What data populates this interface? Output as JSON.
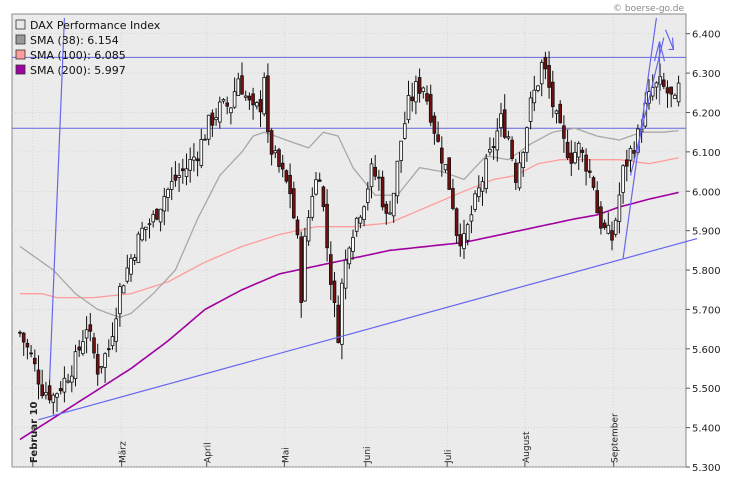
{
  "credit": "© boerse-go.de",
  "chart_data": {
    "type": "candlestick",
    "y_axis": {
      "position": "right",
      "range": [
        5.3,
        6.45
      ],
      "ticks": [
        "6.400",
        "6.300",
        "6.200",
        "6.100",
        "6.000",
        "5.900",
        "5.800",
        "5.700",
        "5.600",
        "5.500",
        "5.400",
        "5.300"
      ]
    },
    "x_axis": {
      "months": [
        "Februar 10",
        "März",
        "April",
        "Mai",
        "Juni",
        "Juli",
        "August",
        "September"
      ]
    },
    "legend": [
      {
        "name": "DAX Performance Index",
        "color": "#e8e8e8"
      },
      {
        "name": "SMA (38): 6.154",
        "color": "#999999"
      },
      {
        "name": "SMA (100): 6.085",
        "color": "#ff9c9c"
      },
      {
        "name": "SMA (200): 5.997",
        "color": "#a000a0"
      }
    ],
    "series": {
      "close_anchors": [
        [
          0,
          5.64
        ],
        [
          3,
          5.58
        ],
        [
          6,
          5.5
        ],
        [
          9,
          5.48
        ],
        [
          12,
          5.52
        ],
        [
          15,
          5.57
        ],
        [
          18,
          5.66
        ],
        [
          21,
          5.55
        ],
        [
          24,
          5.6
        ],
        [
          27,
          5.75
        ],
        [
          30,
          5.83
        ],
        [
          33,
          5.9
        ],
        [
          36,
          5.93
        ],
        [
          39,
          5.99
        ],
        [
          42,
          6.03
        ],
        [
          45,
          6.06
        ],
        [
          48,
          6.1
        ],
        [
          51,
          6.17
        ],
        [
          54,
          6.21
        ],
        [
          57,
          6.22
        ],
        [
          59,
          6.29
        ],
        [
          61,
          6.24
        ],
        [
          63,
          6.2
        ],
        [
          65,
          6.22
        ],
        [
          66,
          6.3
        ],
        [
          67,
          6.13
        ],
        [
          69,
          6.08
        ],
        [
          71,
          6.04
        ],
        [
          73,
          6.0
        ],
        [
          75,
          5.87
        ],
        [
          76,
          5.74
        ],
        [
          77,
          5.87
        ],
        [
          79,
          6.0
        ],
        [
          81,
          6.05
        ],
        [
          83,
          5.86
        ],
        [
          85,
          5.7
        ],
        [
          86,
          5.64
        ],
        [
          87,
          5.76
        ],
        [
          89,
          5.88
        ],
        [
          91,
          5.93
        ],
        [
          93,
          5.98
        ],
        [
          95,
          6.05
        ],
        [
          97,
          6.03
        ],
        [
          99,
          5.93
        ],
        [
          101,
          6.0
        ],
        [
          103,
          6.13
        ],
        [
          105,
          6.22
        ],
        [
          107,
          6.26
        ],
        [
          109,
          6.27
        ],
        [
          111,
          6.2
        ],
        [
          113,
          6.12
        ],
        [
          115,
          6.06
        ],
        [
          117,
          5.97
        ],
        [
          118,
          5.9
        ],
        [
          120,
          5.87
        ],
        [
          122,
          5.94
        ],
        [
          124,
          6.0
        ],
        [
          126,
          6.06
        ],
        [
          128,
          6.12
        ],
        [
          130,
          6.18
        ],
        [
          132,
          6.14
        ],
        [
          134,
          6.04
        ],
        [
          136,
          6.12
        ],
        [
          138,
          6.22
        ],
        [
          140,
          6.28
        ],
        [
          141,
          6.32
        ],
        [
          142,
          6.3
        ],
        [
          144,
          6.22
        ],
        [
          145,
          6.18
        ],
        [
          147,
          6.12
        ],
        [
          149,
          6.09
        ],
        [
          151,
          6.11
        ],
        [
          153,
          6.07
        ],
        [
          155,
          6.02
        ],
        [
          156,
          5.95
        ],
        [
          157,
          5.92
        ],
        [
          158,
          5.9
        ],
        [
          160,
          5.88
        ],
        [
          161,
          5.93
        ],
        [
          163,
          6.05
        ],
        [
          165,
          6.1
        ],
        [
          167,
          6.14
        ],
        [
          169,
          6.21
        ],
        [
          171,
          6.26
        ],
        [
          173,
          6.27
        ],
        [
          175,
          6.25
        ],
        [
          177,
          6.22
        ],
        [
          178,
          6.26
        ]
      ],
      "sma38_anchors": [
        [
          0,
          5.86
        ],
        [
          3,
          5.84
        ],
        [
          9,
          5.8
        ],
        [
          15,
          5.74
        ],
        [
          21,
          5.7
        ],
        [
          27,
          5.68
        ],
        [
          30,
          5.69
        ],
        [
          36,
          5.74
        ],
        [
          42,
          5.8
        ],
        [
          48,
          5.93
        ],
        [
          54,
          6.04
        ],
        [
          60,
          6.1
        ],
        [
          63,
          6.14
        ],
        [
          66,
          6.15
        ],
        [
          72,
          6.13
        ],
        [
          78,
          6.11
        ],
        [
          82,
          6.15
        ],
        [
          86,
          6.14
        ],
        [
          90,
          6.06
        ],
        [
          96,
          5.99
        ],
        [
          102,
          5.99
        ],
        [
          108,
          6.06
        ],
        [
          114,
          6.05
        ],
        [
          120,
          6.03
        ],
        [
          126,
          6.09
        ],
        [
          132,
          6.08
        ],
        [
          138,
          6.12
        ],
        [
          144,
          6.15
        ],
        [
          150,
          6.16
        ],
        [
          156,
          6.14
        ],
        [
          162,
          6.13
        ],
        [
          168,
          6.15
        ],
        [
          174,
          6.15
        ],
        [
          178,
          6.154
        ]
      ],
      "sma100_anchors": [
        [
          0,
          5.74
        ],
        [
          6,
          5.74
        ],
        [
          10,
          5.73
        ],
        [
          20,
          5.73
        ],
        [
          30,
          5.74
        ],
        [
          40,
          5.77
        ],
        [
          50,
          5.82
        ],
        [
          60,
          5.86
        ],
        [
          70,
          5.89
        ],
        [
          80,
          5.91
        ],
        [
          90,
          5.91
        ],
        [
          100,
          5.92
        ],
        [
          110,
          5.96
        ],
        [
          120,
          6.0
        ],
        [
          128,
          6.03
        ],
        [
          134,
          6.04
        ],
        [
          140,
          6.07
        ],
        [
          146,
          6.08
        ],
        [
          150,
          6.08
        ],
        [
          156,
          6.08
        ],
        [
          162,
          6.08
        ],
        [
          170,
          6.07
        ],
        [
          178,
          6.085
        ]
      ],
      "sma200_anchors": [
        [
          0,
          5.37
        ],
        [
          10,
          5.43
        ],
        [
          20,
          5.49
        ],
        [
          30,
          5.55
        ],
        [
          40,
          5.62
        ],
        [
          50,
          5.7
        ],
        [
          60,
          5.75
        ],
        [
          70,
          5.79
        ],
        [
          80,
          5.81
        ],
        [
          90,
          5.83
        ],
        [
          100,
          5.85
        ],
        [
          110,
          5.86
        ],
        [
          120,
          5.87
        ],
        [
          130,
          5.89
        ],
        [
          140,
          5.91
        ],
        [
          150,
          5.93
        ],
        [
          156,
          5.94
        ],
        [
          162,
          5.96
        ],
        [
          170,
          5.98
        ],
        [
          178,
          5.997
        ]
      ]
    },
    "horizontal_lines": [
      6.34,
      6.16
    ],
    "trend_lines": [
      {
        "from": [
          5,
          5.42
        ],
        "to": [
          183,
          5.88
        ]
      },
      {
        "from": [
          8,
          5.52
        ],
        "to": [
          12,
          6.44
        ]
      },
      {
        "from": [
          163,
          5.83
        ],
        "to": [
          172,
          6.44
        ]
      },
      {
        "from": [
          165,
          6.04
        ],
        "to": [
          174,
          6.39
        ]
      }
    ]
  }
}
